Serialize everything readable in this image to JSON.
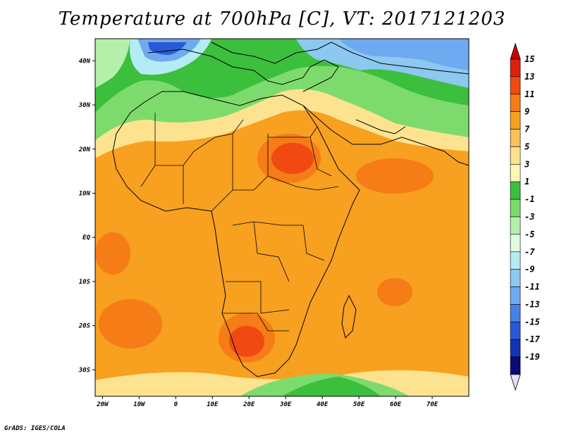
{
  "title": "Temperature at 700hPa [C], VT: 2017121203",
  "credit": "GrADS: IGES/COLA",
  "map": {
    "lon_range": [
      -22,
      80
    ],
    "lat_range": [
      -36,
      45
    ],
    "lat_ticks": [
      {
        "value": 40,
        "label": "40N"
      },
      {
        "value": 30,
        "label": "30N"
      },
      {
        "value": 20,
        "label": "20N"
      },
      {
        "value": 10,
        "label": "10N"
      },
      {
        "value": 0,
        "label": "EQ"
      },
      {
        "value": -10,
        "label": "10S"
      },
      {
        "value": -20,
        "label": "20S"
      },
      {
        "value": -30,
        "label": "30S"
      }
    ],
    "lon_ticks": [
      {
        "value": -20,
        "label": "20W"
      },
      {
        "value": -10,
        "label": "10W"
      },
      {
        "value": 0,
        "label": "0"
      },
      {
        "value": 10,
        "label": "10E"
      },
      {
        "value": 20,
        "label": "20E"
      },
      {
        "value": 30,
        "label": "30E"
      },
      {
        "value": 40,
        "label": "40E"
      },
      {
        "value": 50,
        "label": "50E"
      },
      {
        "value": 60,
        "label": "60E"
      },
      {
        "value": 70,
        "label": "70E"
      }
    ]
  },
  "colorbar": {
    "max_arrow_color": "#cc0000",
    "min_arrow_color": "#e6e0ff",
    "bins": [
      {
        "label": "15",
        "color": "#e01e0e"
      },
      {
        "label": "13",
        "color": "#f04a12"
      },
      {
        "label": "11",
        "color": "#f57c16"
      },
      {
        "label": "9",
        "color": "#f8a020"
      },
      {
        "label": "7",
        "color": "#fac25a"
      },
      {
        "label": "5",
        "color": "#fde38f"
      },
      {
        "label": "3",
        "color": "#fff6b4"
      },
      {
        "label": "1",
        "color": "#3cbf3c"
      },
      {
        "label": "-1",
        "color": "#7ddb6e"
      },
      {
        "label": "-3",
        "color": "#b4f0aa"
      },
      {
        "label": "-5",
        "color": "#e0fae0"
      },
      {
        "label": "-7",
        "color": "#b4ebf5"
      },
      {
        "label": "-9",
        "color": "#8cc8f0"
      },
      {
        "label": "-11",
        "color": "#6eaaf0"
      },
      {
        "label": "-13",
        "color": "#4682e6"
      },
      {
        "label": "-15",
        "color": "#285ad7"
      },
      {
        "label": "-17",
        "color": "#1432b4"
      },
      {
        "label": "-19",
        "color": "#0a0a78"
      }
    ]
  }
}
